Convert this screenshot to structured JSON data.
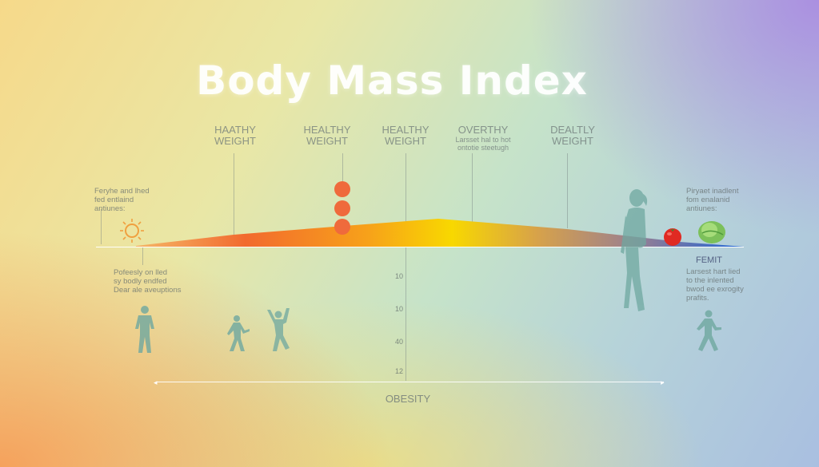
{
  "title": "Body Mass Index",
  "categories": [
    {
      "line1": "HAATHY",
      "line2": "WEIGHT",
      "sub1": "",
      "sub2": ""
    },
    {
      "line1": "HEALTHY",
      "line2": "WEIGHT",
      "sub1": "",
      "sub2": ""
    },
    {
      "line1": "HEALTHY",
      "line2": "WEIGHT",
      "sub1": "",
      "sub2": ""
    },
    {
      "line1": "OVERTHY",
      "line2": "",
      "sub1": "Larsset hal to hot",
      "sub2": "ontotie steetugh"
    },
    {
      "line1": "DEALTLY",
      "line2": "WEIGHT",
      "sub1": "",
      "sub2": ""
    }
  ],
  "notes": {
    "left_top": [
      "Feryhe and lhed",
      "fed entlaind",
      "antiunes:"
    ],
    "left_bottom": [
      "Pofeesly on lled",
      "sy bodly endfed",
      "Dear ale aveuptions"
    ],
    "right_top": [
      "Piryaet inadlent",
      "fom enalanid",
      "antiunes:"
    ],
    "right_heading": "FEMIT",
    "right_bottom": [
      "Larsest hart lied",
      "to the inlented",
      "bwod ee exrogity",
      "prafits."
    ]
  },
  "ticks": [
    "10",
    "10",
    "40",
    "12"
  ],
  "axis_label": "OBESITY",
  "colors": {
    "dot": "#ef6a3c",
    "band_start": "#f5a050",
    "band_peak": "#f8d400",
    "band_end": "#1e66d8",
    "figure": "#6fa8a0"
  },
  "icons": [
    "sun-icon",
    "person-icon",
    "apple-icon",
    "leaf-icon"
  ]
}
